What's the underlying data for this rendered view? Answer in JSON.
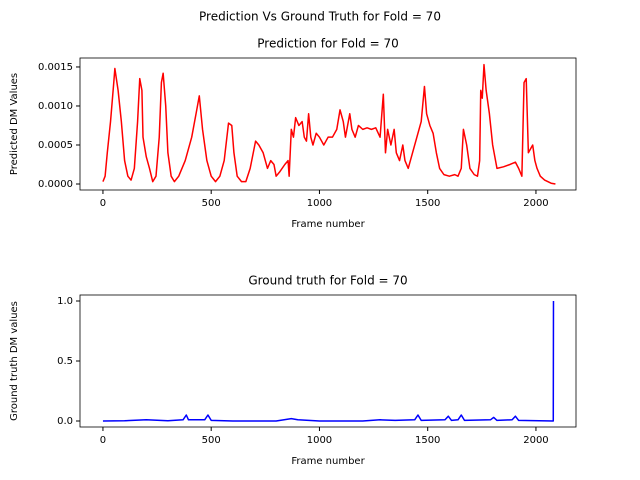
{
  "suptitle": "Prediction Vs Ground Truth for Fold = 70",
  "chart_data": [
    {
      "type": "line",
      "title": "Prediction for Fold = 70",
      "xlabel": "Frame number",
      "ylabel": "Predicted DM Values",
      "xlim": [
        -106,
        2185
      ],
      "ylim": [
        -7.7e-05,
        0.001615
      ],
      "xticks": [
        0,
        500,
        1000,
        1500,
        2000
      ],
      "yticks": [
        {
          "value": 0,
          "label": "0.0000"
        },
        {
          "value": 0.0005,
          "label": "0.0005"
        },
        {
          "value": 0.001,
          "label": "0.0010"
        },
        {
          "value": 0.0015,
          "label": "0.0015"
        }
      ],
      "grid": false,
      "x": [
        0,
        10,
        20,
        35,
        50,
        55,
        70,
        85,
        100,
        115,
        130,
        145,
        160,
        170,
        180,
        185,
        200,
        215,
        230,
        245,
        260,
        270,
        278,
        290,
        300,
        315,
        330,
        350,
        380,
        410,
        430,
        445,
        460,
        480,
        500,
        520,
        540,
        560,
        580,
        595,
        605,
        620,
        640,
        660,
        680,
        705,
        720,
        740,
        760,
        775,
        790,
        800,
        815,
        840,
        855,
        860,
        870,
        880,
        890,
        905,
        920,
        930,
        940,
        950,
        960,
        970,
        985,
        1000,
        1020,
        1040,
        1060,
        1080,
        1095,
        1110,
        1120,
        1140,
        1150,
        1165,
        1180,
        1200,
        1220,
        1240,
        1260,
        1280,
        1295,
        1305,
        1315,
        1330,
        1345,
        1355,
        1370,
        1385,
        1395,
        1410,
        1430,
        1450,
        1470,
        1485,
        1495,
        1510,
        1525,
        1540,
        1555,
        1575,
        1600,
        1625,
        1640,
        1655,
        1665,
        1680,
        1695,
        1715,
        1730,
        1740,
        1745,
        1752,
        1760,
        1770,
        1785,
        1800,
        1820,
        1850,
        1880,
        1905,
        1920,
        1935,
        1945,
        1955,
        1965,
        1985,
        1995,
        2005,
        2020,
        2040,
        2070,
        2090
      ],
      "series": [
        {
          "color": "#ff0000",
          "values": [
            3e-05,
            0.0001,
            0.0004,
            0.0008,
            0.0013,
            0.00148,
            0.0012,
            0.0008,
            0.0003,
            0.0001,
            5e-05,
            0.0002,
            0.0008,
            0.00135,
            0.0012,
            0.0006,
            0.00035,
            0.0002,
            3e-05,
            0.0001,
            0.0006,
            0.0013,
            0.00142,
            0.001,
            0.0004,
            0.0001,
            3e-05,
            0.0001,
            0.0003,
            0.0006,
            0.0009,
            0.00113,
            0.0007,
            0.0003,
            0.0001,
            3e-05,
            0.0001,
            0.0003,
            0.00078,
            0.00075,
            0.0004,
            0.0001,
            3e-05,
            3e-05,
            0.0002,
            0.00055,
            0.0005,
            0.0004,
            0.0002,
            0.0003,
            0.00025,
            0.0001,
            0.00015,
            0.00025,
            0.0003,
            0.0001,
            0.0007,
            0.0006,
            0.00085,
            0.00075,
            0.0008,
            0.0006,
            0.00055,
            0.0009,
            0.0006,
            0.0005,
            0.00065,
            0.0006,
            0.0005,
            0.0006,
            0.0006,
            0.0007,
            0.00095,
            0.0008,
            0.0006,
            0.0009,
            0.0007,
            0.0006,
            0.00075,
            0.0007,
            0.00072,
            0.0007,
            0.00072,
            0.0006,
            0.00115,
            0.0004,
            0.0007,
            0.0005,
            0.0007,
            0.0004,
            0.0003,
            0.0005,
            0.0003,
            0.0002,
            0.0004,
            0.0006,
            0.0008,
            0.00125,
            0.0009,
            0.00075,
            0.00065,
            0.0004,
            0.0002,
            0.00012,
            0.0001,
            0.00012,
            0.0001,
            0.0002,
            0.0007,
            0.0005,
            0.0002,
            0.00012,
            0.0001,
            0.0003,
            0.0012,
            0.0011,
            0.00153,
            0.0012,
            0.0009,
            0.0005,
            0.0002,
            0.00022,
            0.00025,
            0.00028,
            0.0002,
            0.0001,
            0.0013,
            0.00135,
            0.0004,
            0.0005,
            0.0003,
            0.0002,
            0.0001,
            5e-05,
            1e-05,
            0.0
          ]
        }
      ]
    },
    {
      "type": "line",
      "title": "Ground truth for Fold = 70",
      "xlabel": "Frame number",
      "ylabel": "Ground truth DM values",
      "xlim": [
        -106,
        2185
      ],
      "ylim": [
        -0.05,
        1.05
      ],
      "xticks": [
        0,
        500,
        1000,
        1500,
        2000
      ],
      "yticks": [
        {
          "value": 0,
          "label": "0.0"
        },
        0.5,
        {
          "value": 1,
          "label": "1.0"
        }
      ],
      "grid": false,
      "x": [
        0,
        100,
        200,
        300,
        370,
        385,
        395,
        470,
        485,
        500,
        600,
        800,
        870,
        900,
        1000,
        1200,
        1280,
        1350,
        1440,
        1455,
        1470,
        1580,
        1595,
        1610,
        1640,
        1655,
        1670,
        1790,
        1805,
        1820,
        1890,
        1905,
        1920,
        2080,
        2081
      ],
      "series": [
        {
          "color": "#0000ff",
          "values": [
            0,
            0.002,
            0.01,
            0.002,
            0.01,
            0.05,
            0.01,
            0.01,
            0.05,
            0.005,
            0,
            0,
            0.02,
            0.01,
            0,
            0,
            0.01,
            0.005,
            0.01,
            0.05,
            0.005,
            0.01,
            0.04,
            0.005,
            0.01,
            0.05,
            0.005,
            0.01,
            0.03,
            0.005,
            0.01,
            0.04,
            0.005,
            0,
            1.0
          ]
        }
      ]
    }
  ]
}
